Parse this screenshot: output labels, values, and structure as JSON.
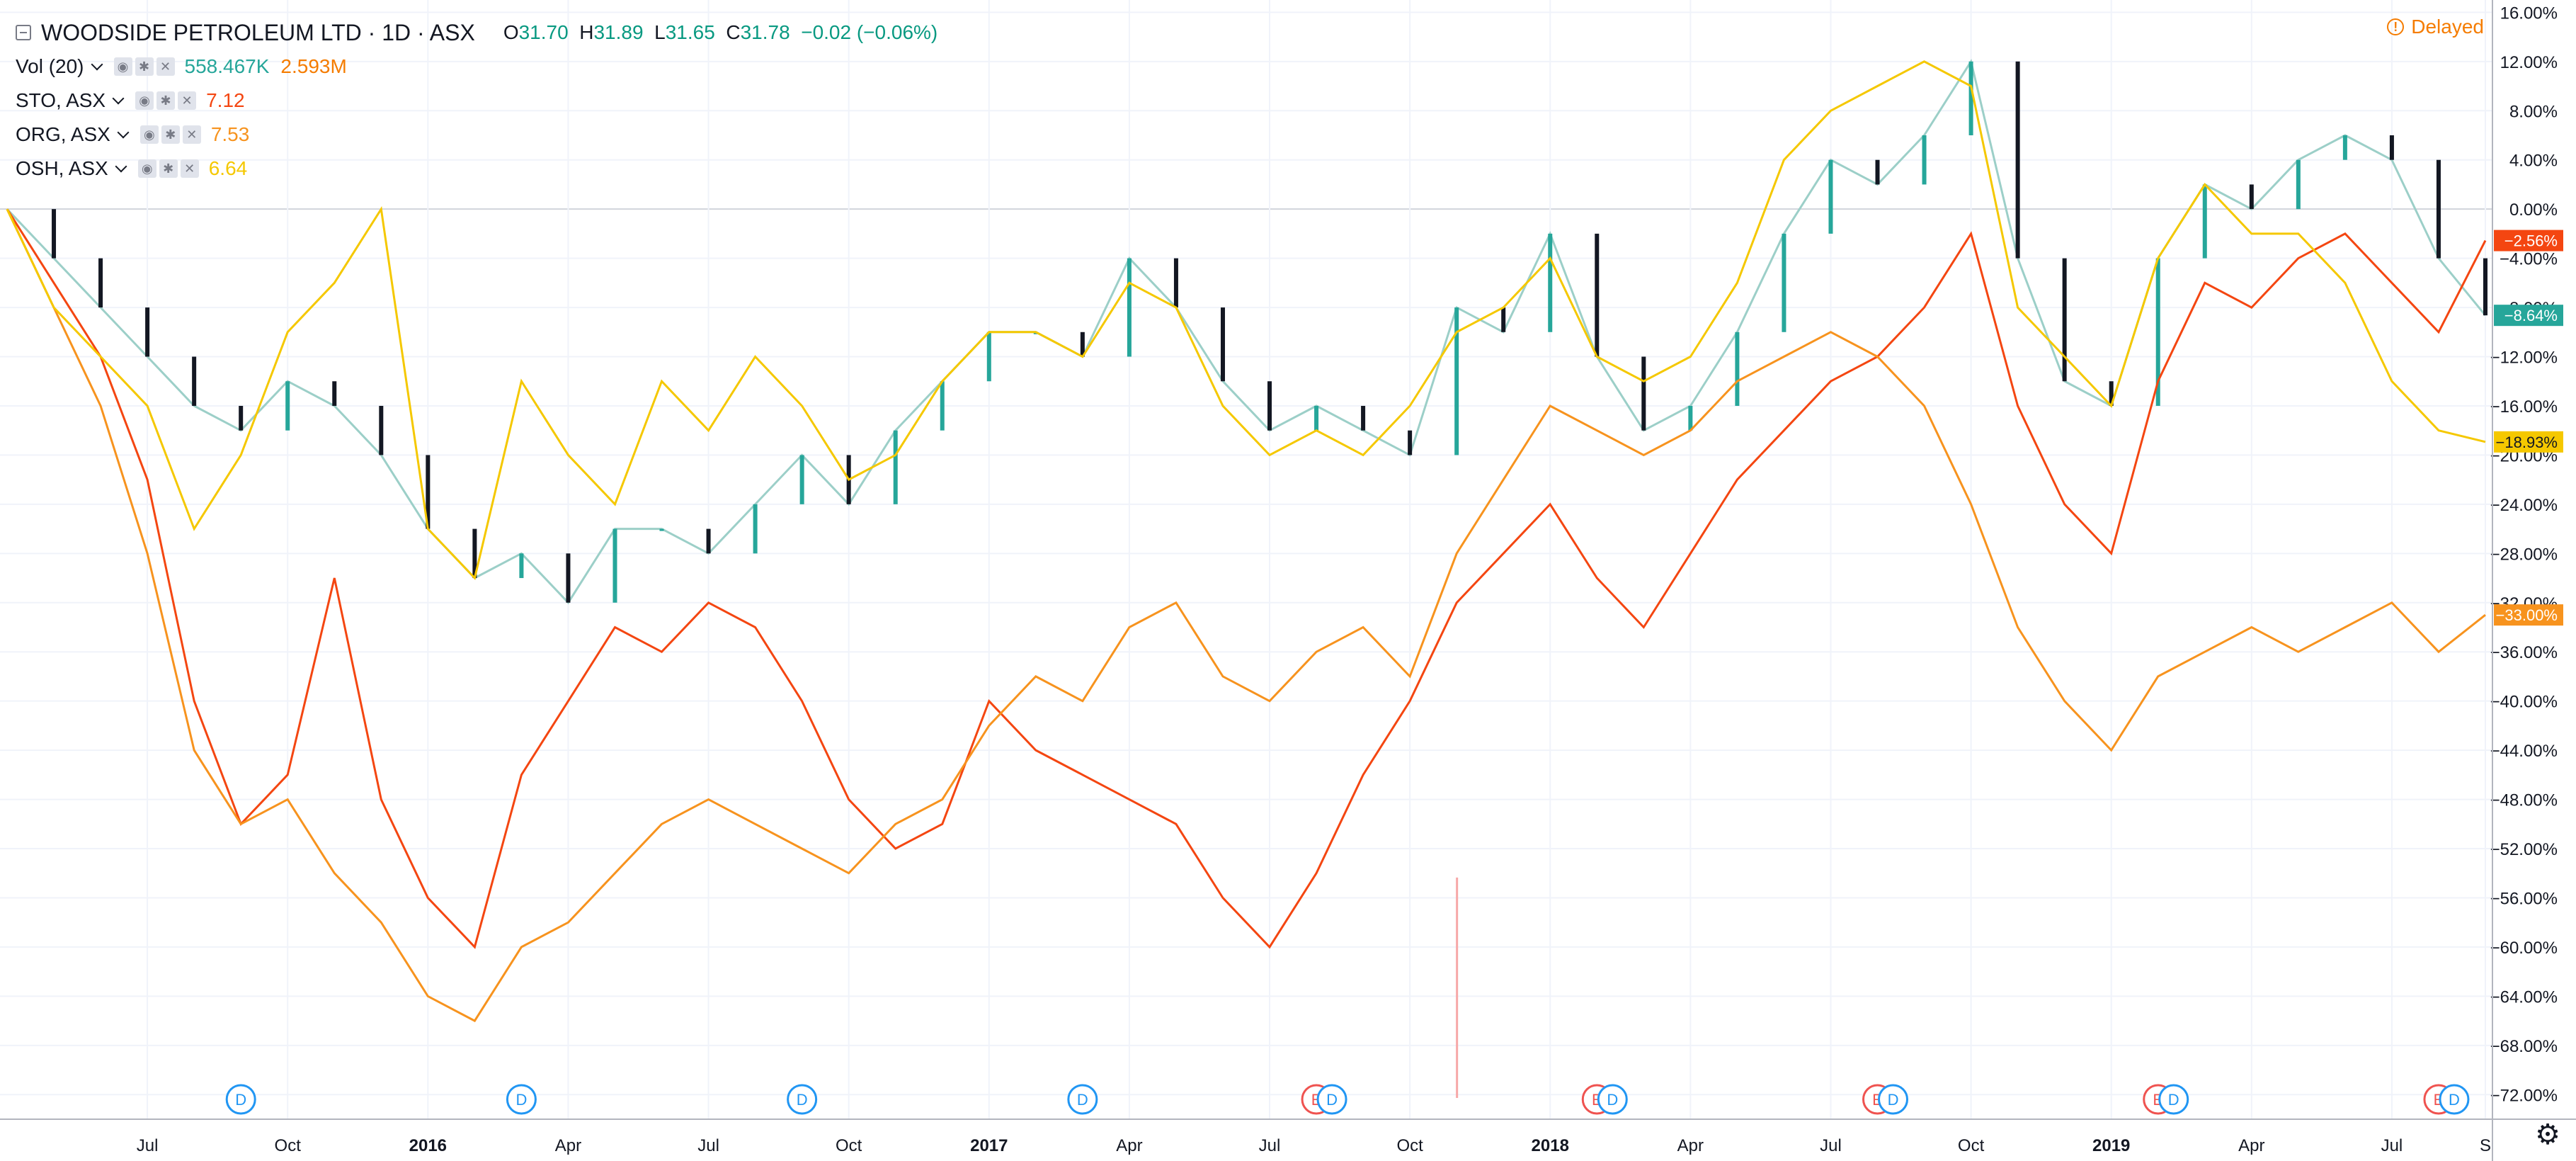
{
  "header": {
    "symbol_title": "WOODSIDE PETROLEUM LTD · 1D · ASX",
    "open_label": "O",
    "open": "31.70",
    "high_label": "H",
    "high": "31.89",
    "low_label": "L",
    "low": "31.65",
    "close_label": "C",
    "close": "31.78",
    "change": "−0.02 (−0.06%)",
    "delayed": "Delayed"
  },
  "indicators": [
    {
      "label": "Vol (20)",
      "value1": "558.467K",
      "value2": "2.593M",
      "color1": "#26a69a",
      "color2": "#f57c00"
    },
    {
      "label": "STO, ASX",
      "value1": "7.12",
      "color1": "#f44611"
    },
    {
      "label": "ORG, ASX",
      "value1": "7.53",
      "color1": "#f7931e"
    },
    {
      "label": "OSH, ASX",
      "value1": "6.64",
      "color1": "#f5c800"
    }
  ],
  "chart_data": {
    "type": "line",
    "y_unit": "%",
    "ylim": [
      -74,
      17
    ],
    "y_ticks": [
      "16.00%",
      "12.00%",
      "8.00%",
      "4.00%",
      "0.00%",
      "−4.00%",
      "−8.00%",
      "−12.00%",
      "−16.00%",
      "−20.00%",
      "−24.00%",
      "−28.00%",
      "−32.00%",
      "−36.00%",
      "−40.00%",
      "−44.00%",
      "−48.00%",
      "−52.00%",
      "−56.00%",
      "−60.00%",
      "−64.00%",
      "−68.00%",
      "−72.00%"
    ],
    "y_tick_values": [
      16,
      12,
      8,
      4,
      0,
      -4,
      -8,
      -12,
      -16,
      -20,
      -24,
      -28,
      -32,
      -36,
      -40,
      -44,
      -48,
      -52,
      -56,
      -60,
      -64,
      -68,
      -72
    ],
    "x_ticks": [
      "Jul",
      "Oct",
      "2016",
      "Apr",
      "Jul",
      "Oct",
      "2017",
      "Apr",
      "Jul",
      "Oct",
      "2018",
      "Apr",
      "Jul",
      "Oct",
      "2019",
      "Apr",
      "Jul",
      "S"
    ],
    "x_tick_dates": [
      "2015-07",
      "2015-10",
      "2016-01",
      "2016-04",
      "2016-07",
      "2016-10",
      "2017-01",
      "2017-04",
      "2017-07",
      "2017-10",
      "2018-01",
      "2018-04",
      "2018-07",
      "2018-10",
      "2019-01",
      "2019-04",
      "2019-07",
      "2019-09"
    ],
    "x_range": [
      "2015-04",
      "2019-09"
    ],
    "grid": true,
    "series": [
      {
        "name": "WPL",
        "type": "candlestick",
        "color": "#131722",
        "up_color": "#26a69a",
        "down_color": "#ef5350",
        "x": [
          "2015-04",
          "2015-05",
          "2015-06",
          "2015-07",
          "2015-08",
          "2015-09",
          "2015-10",
          "2015-11",
          "2015-12",
          "2016-01",
          "2016-02",
          "2016-03",
          "2016-04",
          "2016-05",
          "2016-06",
          "2016-07",
          "2016-08",
          "2016-09",
          "2016-10",
          "2016-11",
          "2016-12",
          "2017-01",
          "2017-02",
          "2017-03",
          "2017-04",
          "2017-05",
          "2017-06",
          "2017-07",
          "2017-08",
          "2017-09",
          "2017-10",
          "2017-11",
          "2017-12",
          "2018-01",
          "2018-02",
          "2018-03",
          "2018-04",
          "2018-05",
          "2018-06",
          "2018-07",
          "2018-08",
          "2018-09",
          "2018-10",
          "2018-11",
          "2018-12",
          "2019-01",
          "2019-02",
          "2019-03",
          "2019-04",
          "2019-05",
          "2019-06",
          "2019-07",
          "2019-08",
          "2019-09"
        ],
        "values": [
          0,
          -4,
          -8,
          -12,
          -16,
          -18,
          -14,
          -16,
          -20,
          -26,
          -30,
          -28,
          -32,
          -26,
          -26,
          -28,
          -24,
          -20,
          -24,
          -18,
          -14,
          -10,
          -10,
          -12,
          -4,
          -8,
          -14,
          -18,
          -16,
          -18,
          -20,
          -8,
          -10,
          -2,
          -12,
          -18,
          -16,
          -10,
          -2,
          4,
          2,
          6,
          12,
          -4,
          -14,
          -16,
          -4,
          2,
          0,
          4,
          6,
          4,
          -4,
          -8.64
        ],
        "last_label": "−8.64%"
      },
      {
        "name": "STO",
        "color": "#f44611",
        "x": [
          "2015-04",
          "2015-05",
          "2015-06",
          "2015-07",
          "2015-08",
          "2015-09",
          "2015-10",
          "2015-11",
          "2015-12",
          "2016-01",
          "2016-02",
          "2016-03",
          "2016-04",
          "2016-05",
          "2016-06",
          "2016-07",
          "2016-08",
          "2016-09",
          "2016-10",
          "2016-11",
          "2016-12",
          "2017-01",
          "2017-02",
          "2017-03",
          "2017-04",
          "2017-05",
          "2017-06",
          "2017-07",
          "2017-08",
          "2017-09",
          "2017-10",
          "2017-11",
          "2017-12",
          "2018-01",
          "2018-02",
          "2018-03",
          "2018-04",
          "2018-05",
          "2018-06",
          "2018-07",
          "2018-08",
          "2018-09",
          "2018-10",
          "2018-11",
          "2018-12",
          "2019-01",
          "2019-02",
          "2019-03",
          "2019-04",
          "2019-05",
          "2019-06",
          "2019-07",
          "2019-08",
          "2019-09"
        ],
        "values": [
          0,
          -6,
          -12,
          -22,
          -40,
          -50,
          -46,
          -30,
          -48,
          -56,
          -60,
          -46,
          -40,
          -34,
          -36,
          -32,
          -34,
          -40,
          -48,
          -52,
          -50,
          -40,
          -44,
          -46,
          -48,
          -50,
          -56,
          -60,
          -54,
          -46,
          -40,
          -32,
          -28,
          -24,
          -30,
          -34,
          -28,
          -22,
          -18,
          -14,
          -12,
          -8,
          -2,
          -16,
          -24,
          -28,
          -14,
          -6,
          -8,
          -4,
          -2,
          -6,
          -10,
          -2.56
        ],
        "last_label": "−2.56%"
      },
      {
        "name": "ORG",
        "color": "#f7931e",
        "x": [
          "2015-04",
          "2015-05",
          "2015-06",
          "2015-07",
          "2015-08",
          "2015-09",
          "2015-10",
          "2015-11",
          "2015-12",
          "2016-01",
          "2016-02",
          "2016-03",
          "2016-04",
          "2016-05",
          "2016-06",
          "2016-07",
          "2016-08",
          "2016-09",
          "2016-10",
          "2016-11",
          "2016-12",
          "2017-01",
          "2017-02",
          "2017-03",
          "2017-04",
          "2017-05",
          "2017-06",
          "2017-07",
          "2017-08",
          "2017-09",
          "2017-10",
          "2017-11",
          "2017-12",
          "2018-01",
          "2018-02",
          "2018-03",
          "2018-04",
          "2018-05",
          "2018-06",
          "2018-07",
          "2018-08",
          "2018-09",
          "2018-10",
          "2018-11",
          "2018-12",
          "2019-01",
          "2019-02",
          "2019-03",
          "2019-04",
          "2019-05",
          "2019-06",
          "2019-07",
          "2019-08",
          "2019-09"
        ],
        "values": [
          0,
          -8,
          -16,
          -28,
          -44,
          -50,
          -48,
          -54,
          -58,
          -64,
          -66,
          -60,
          -58,
          -54,
          -50,
          -48,
          -50,
          -52,
          -54,
          -50,
          -48,
          -42,
          -38,
          -40,
          -34,
          -32,
          -38,
          -40,
          -36,
          -34,
          -38,
          -28,
          -22,
          -16,
          -18,
          -20,
          -18,
          -14,
          -12,
          -10,
          -12,
          -16,
          -24,
          -34,
          -40,
          -44,
          -38,
          -36,
          -34,
          -36,
          -34,
          -32,
          -36,
          -33.0
        ],
        "last_label": "−33.00%"
      },
      {
        "name": "OSH",
        "color": "#f5c800",
        "x": [
          "2015-04",
          "2015-05",
          "2015-06",
          "2015-07",
          "2015-08",
          "2015-09",
          "2015-10",
          "2015-11",
          "2015-12",
          "2016-01",
          "2016-02",
          "2016-03",
          "2016-04",
          "2016-05",
          "2016-06",
          "2016-07",
          "2016-08",
          "2016-09",
          "2016-10",
          "2016-11",
          "2016-12",
          "2017-01",
          "2017-02",
          "2017-03",
          "2017-04",
          "2017-05",
          "2017-06",
          "2017-07",
          "2017-08",
          "2017-09",
          "2017-10",
          "2017-11",
          "2017-12",
          "2018-01",
          "2018-02",
          "2018-03",
          "2018-04",
          "2018-05",
          "2018-06",
          "2018-07",
          "2018-08",
          "2018-09",
          "2018-10",
          "2018-11",
          "2018-12",
          "2019-01",
          "2019-02",
          "2019-03",
          "2019-04",
          "2019-05",
          "2019-06",
          "2019-07",
          "2019-08",
          "2019-09"
        ],
        "values": [
          0,
          -8,
          -12,
          -16,
          -26,
          -20,
          -10,
          -6,
          0,
          -26,
          -30,
          -14,
          -20,
          -24,
          -14,
          -18,
          -12,
          -16,
          -22,
          -20,
          -14,
          -10,
          -10,
          -12,
          -6,
          -8,
          -16,
          -20,
          -18,
          -20,
          -16,
          -10,
          -8,
          -4,
          -12,
          -14,
          -12,
          -6,
          4,
          8,
          10,
          12,
          10,
          -8,
          -12,
          -16,
          -4,
          2,
          -2,
          -2,
          -6,
          -14,
          -18,
          -18.93
        ],
        "last_label": "−18.93%"
      },
      {
        "name": "Vol",
        "type": "volume",
        "x": [
          "2017-11"
        ],
        "values": [
          2.593
        ]
      }
    ],
    "events": [
      {
        "label": "D",
        "x": "2015-09",
        "color": "#2196f3"
      },
      {
        "label": "D",
        "x": "2016-03",
        "color": "#2196f3"
      },
      {
        "label": "D",
        "x": "2016-09",
        "color": "#2196f3"
      },
      {
        "label": "D",
        "x": "2017-03",
        "color": "#2196f3"
      },
      {
        "label": "E",
        "x": "2017-08",
        "color": "#ef5350"
      },
      {
        "label": "D",
        "x": "2017-08",
        "color": "#2196f3"
      },
      {
        "label": "E",
        "x": "2018-02",
        "color": "#ef5350"
      },
      {
        "label": "D",
        "x": "2018-02",
        "color": "#2196f3"
      },
      {
        "label": "E",
        "x": "2018-08",
        "color": "#ef5350"
      },
      {
        "label": "D",
        "x": "2018-08",
        "color": "#2196f3"
      },
      {
        "label": "E",
        "x": "2019-02",
        "color": "#ef5350"
      },
      {
        "label": "D",
        "x": "2019-02",
        "color": "#2196f3"
      },
      {
        "label": "E",
        "x": "2019-08",
        "color": "#ef5350"
      },
      {
        "label": "D",
        "x": "2019-08",
        "color": "#2196f3"
      }
    ]
  },
  "colors": {
    "grid": "#f0f3fa",
    "axis_text": "#131722",
    "baseline": "#d1d4dc",
    "wpl_line": "#9ccfc8"
  },
  "footer": {
    "settings_icon": "gear-icon"
  }
}
